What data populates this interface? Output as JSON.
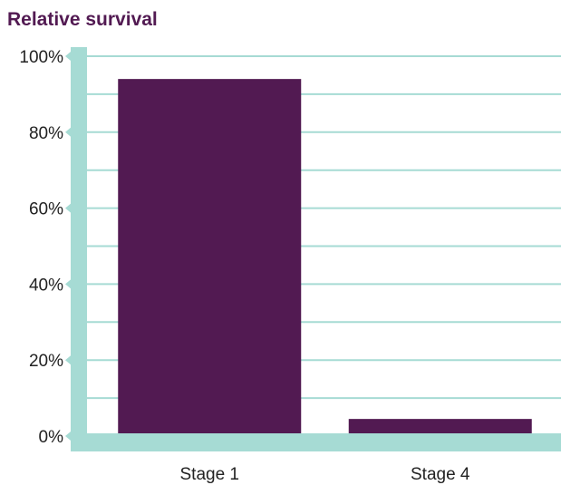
{
  "chart_data": {
    "type": "bar",
    "title": "Relative survival",
    "categories": [
      "Stage 1",
      "Stage 4"
    ],
    "values": [
      94,
      4.5
    ],
    "ylim": [
      0,
      100
    ],
    "y_ticks": [
      "0%",
      "20%",
      "40%",
      "60%",
      "80%",
      "100%"
    ],
    "y_tick_values": [
      0,
      20,
      40,
      60,
      80,
      100
    ],
    "minor_grid_values": [
      10,
      30,
      50,
      70,
      90
    ],
    "grid": true,
    "xlabel": "",
    "ylabel": "",
    "colors": {
      "bar": "#521a52",
      "axis": "#a6dbd4",
      "title": "#521a52",
      "text": "#222222"
    }
  }
}
